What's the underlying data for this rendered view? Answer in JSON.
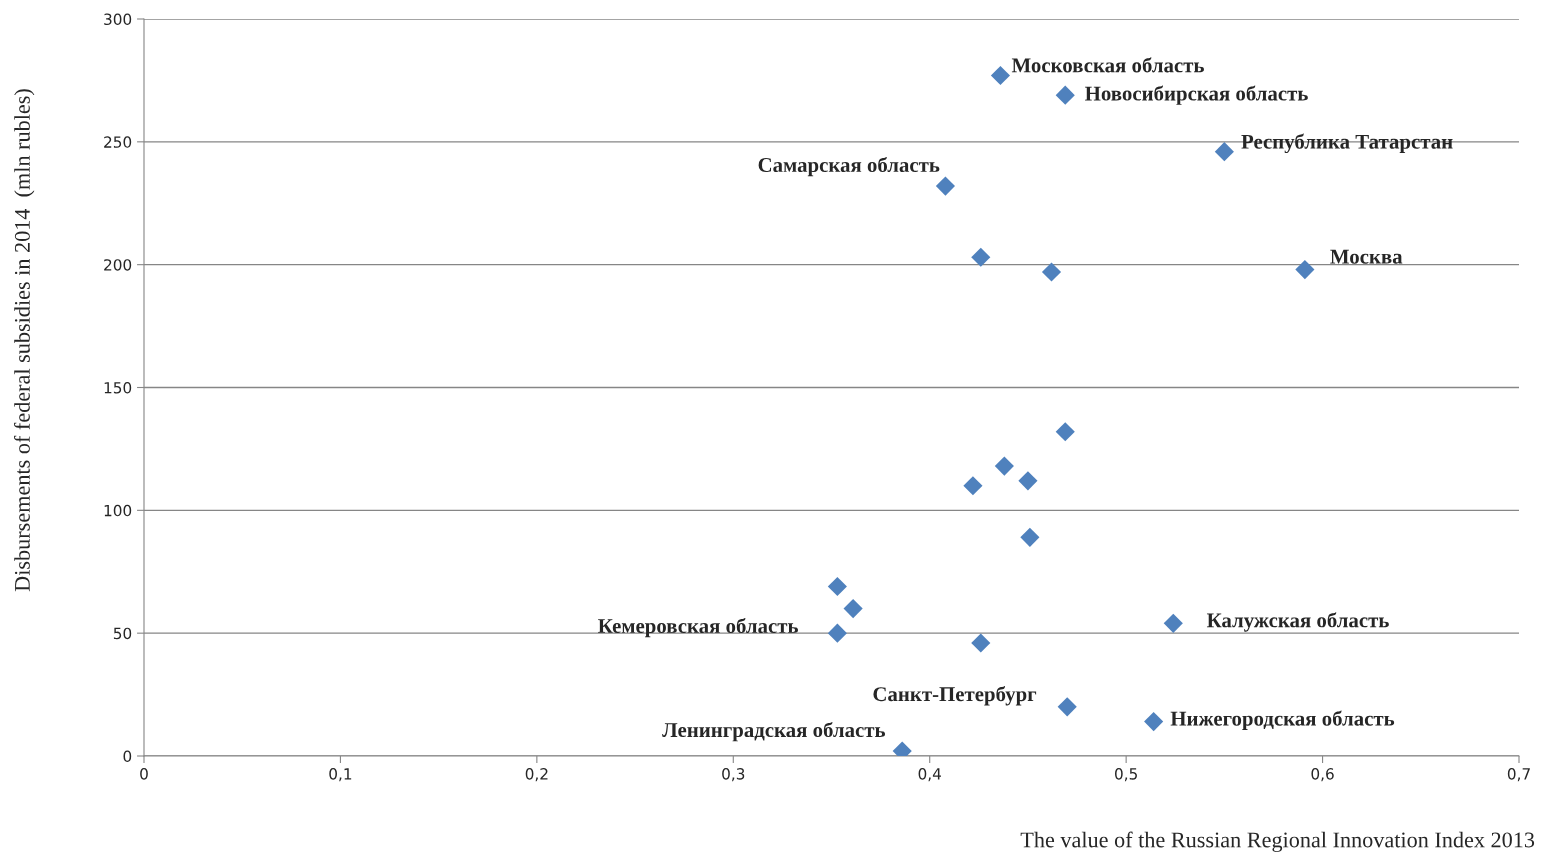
{
  "chart_data": {
    "type": "scatter",
    "xlabel": "The value of the Russian Regional Innovation Index 2013",
    "ylabel": "Disbursements of federal subsidies in 2014  (mln rubles)",
    "series": [
      {
        "color": "#4f81bd",
        "x": [
          0.436,
          0.469,
          0.55,
          0.408,
          0.426,
          0.462,
          0.591,
          0.469,
          0.438,
          0.422,
          0.45,
          0.451,
          0.353,
          0.361,
          0.353,
          0.426,
          0.524,
          0.47,
          0.514,
          0.386
        ],
        "values": [
          277,
          269,
          246,
          232,
          203,
          197,
          198,
          132,
          118,
          110,
          112,
          89,
          69,
          60,
          50,
          46,
          54,
          20,
          14,
          2
        ]
      }
    ],
    "marker": "diamond",
    "grid": "y",
    "legend": false,
    "xlim": [
      0,
      0.7
    ],
    "ylim": [
      0,
      300
    ],
    "xticks": [
      0,
      {
        "value": 0.1,
        "label": "0,1"
      },
      {
        "value": 0.2,
        "label": "0,2"
      },
      {
        "value": 0.3,
        "label": "0,3"
      },
      {
        "value": 0.4,
        "label": "0,4"
      },
      {
        "value": 0.5,
        "label": "0,5"
      },
      {
        "value": 0.6,
        "label": "0,6"
      },
      {
        "value": 0.7,
        "label": "0,7"
      }
    ],
    "yticks": [
      0,
      50,
      100,
      150,
      200,
      250,
      300
    ],
    "annotations": [
      {
        "text": "Московская область",
        "x": 0.436,
        "y": 277
      },
      {
        "text": "Новосибирская область",
        "x": 0.469,
        "y": 269
      },
      {
        "text": "Республика Татарстан",
        "x": 0.55,
        "y": 246
      },
      {
        "text": "Самарская область",
        "x": 0.408,
        "y": 232
      },
      {
        "text": "Москва",
        "x": 0.591,
        "y": 198
      },
      {
        "text": "Калужская область",
        "x": 0.524,
        "y": 54
      },
      {
        "text": "Кемеровская область",
        "x": 0.353,
        "y": 50
      },
      {
        "text": "Санкт-Петербург",
        "x": 0.47,
        "y": 20
      },
      {
        "text": "Нижегородская область",
        "x": 0.514,
        "y": 14
      },
      {
        "text": "Ленинградская область",
        "x": 0.386,
        "y": 2
      }
    ]
  }
}
